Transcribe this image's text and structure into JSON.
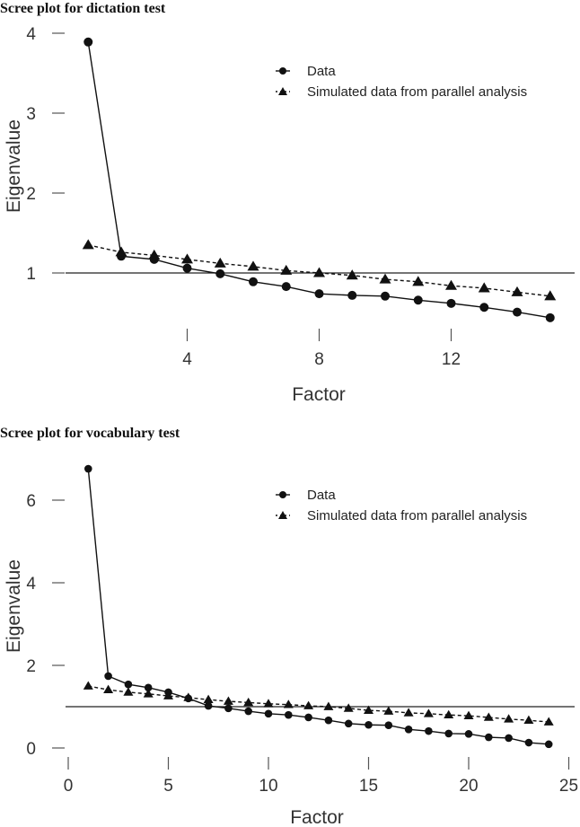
{
  "chart_data": [
    {
      "type": "line",
      "title": "Scree plot for dictation test",
      "xlabel": "Factor",
      "ylabel": "Eigenvalue",
      "x": [
        1,
        2,
        3,
        4,
        5,
        6,
        7,
        8,
        9,
        10,
        11,
        12,
        13,
        14,
        15
      ],
      "series": [
        {
          "name": "Data",
          "marker": "circle",
          "line": "solid",
          "values": [
            3.89,
            1.21,
            1.17,
            1.06,
            0.99,
            0.89,
            0.83,
            0.74,
            0.72,
            0.71,
            0.66,
            0.62,
            0.57,
            0.51,
            0.44
          ]
        },
        {
          "name": "Simulated data from parallel analysis",
          "marker": "triangle",
          "line": "dashed",
          "values": [
            1.35,
            1.26,
            1.22,
            1.17,
            1.12,
            1.08,
            1.03,
            1.0,
            0.97,
            0.92,
            0.89,
            0.84,
            0.81,
            0.76,
            0.71
          ]
        }
      ],
      "reference_line": 1,
      "xticks": [
        4,
        8,
        12
      ],
      "yticks": [
        1,
        2,
        3,
        4
      ],
      "xlim": [
        0.3,
        16.2
      ],
      "ylim": [
        0.3,
        4.1
      ],
      "grid": false,
      "legend_position": "upper right"
    },
    {
      "type": "line",
      "title": "Scree plot for vocabulary test",
      "xlabel": "Factor",
      "ylabel": "Eigenvalue",
      "x": [
        1,
        2,
        3,
        4,
        5,
        6,
        7,
        8,
        9,
        10,
        11,
        12,
        13,
        14,
        15,
        16,
        17,
        18,
        19,
        20,
        21,
        22,
        23,
        24
      ],
      "series": [
        {
          "name": "Data",
          "marker": "circle",
          "line": "solid",
          "values": [
            6.76,
            1.74,
            1.54,
            1.46,
            1.35,
            1.2,
            1.02,
            0.96,
            0.89,
            0.83,
            0.8,
            0.74,
            0.67,
            0.59,
            0.56,
            0.55,
            0.45,
            0.41,
            0.35,
            0.34,
            0.26,
            0.24,
            0.13,
            0.09
          ]
        },
        {
          "name": "Simulated data from parallel analysis",
          "marker": "triangle",
          "line": "dashed",
          "values": [
            1.5,
            1.41,
            1.35,
            1.31,
            1.26,
            1.22,
            1.17,
            1.13,
            1.1,
            1.07,
            1.05,
            1.02,
            1.0,
            0.96,
            0.91,
            0.89,
            0.85,
            0.83,
            0.8,
            0.78,
            0.74,
            0.7,
            0.67,
            0.63
          ]
        }
      ],
      "reference_line": 1,
      "xticks": [
        0,
        5,
        10,
        15,
        20,
        25
      ],
      "yticks": [
        0,
        2,
        4,
        6
      ],
      "xlim": [
        0,
        25
      ],
      "ylim": [
        0,
        7
      ],
      "grid": false,
      "legend_position": "upper right"
    }
  ],
  "panels": [
    {
      "title": "Scree plot for dictation test"
    },
    {
      "title": "Scree plot for vocabulary test"
    }
  ],
  "legend": {
    "data_label": "Data",
    "parallel_label": "Simulated data from parallel analysis"
  },
  "axes": {
    "xlabel": "Factor",
    "ylabel": "Eigenvalue"
  }
}
